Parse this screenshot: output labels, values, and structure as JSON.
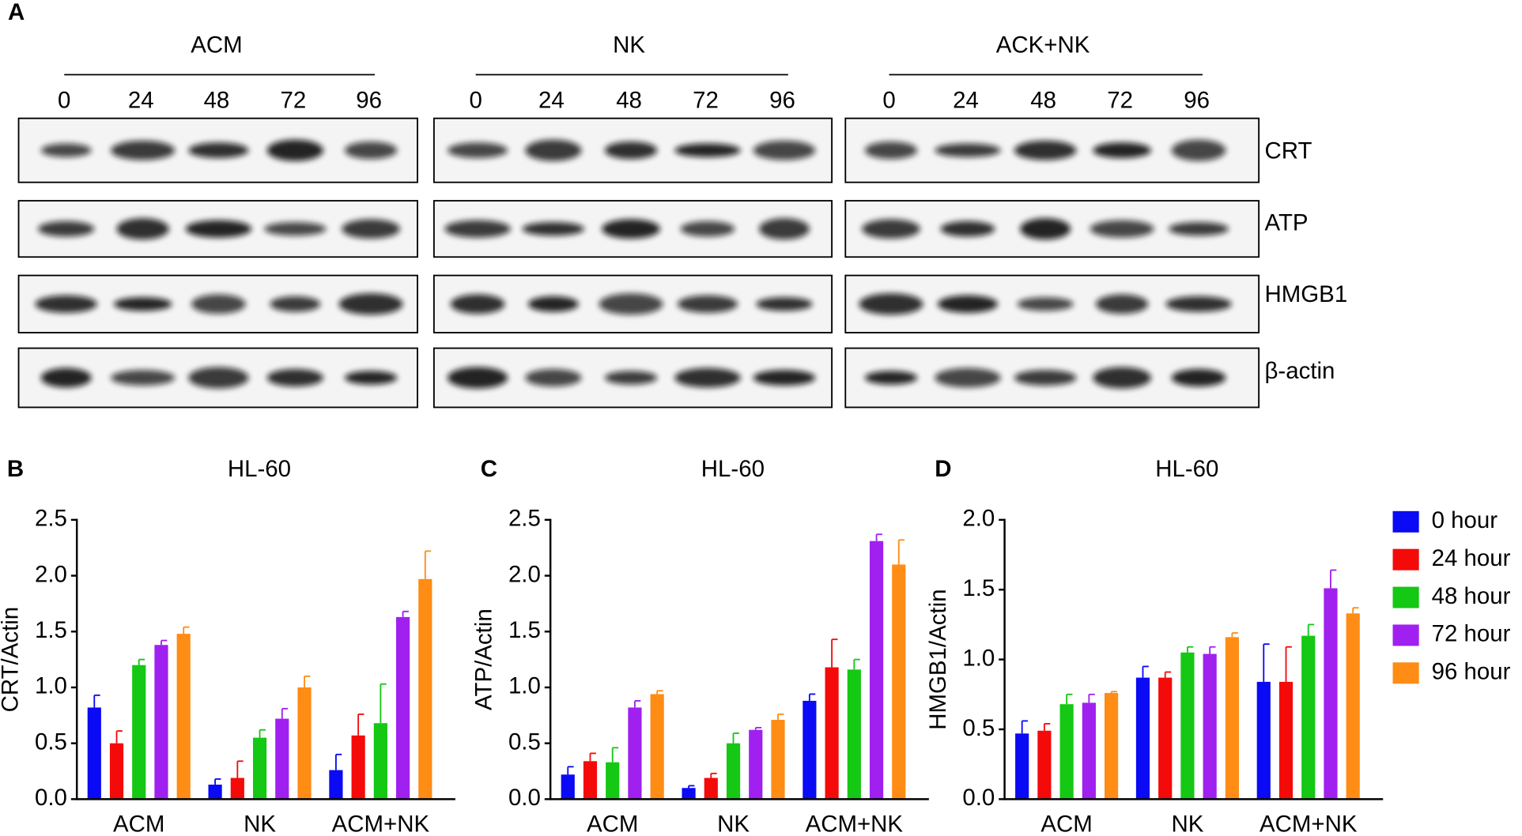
{
  "panel_a": {
    "label": "A",
    "groups": [
      {
        "name": "ACM",
        "times": [
          0,
          24,
          48,
          72,
          96
        ]
      },
      {
        "name": "NK",
        "times": [
          0,
          24,
          48,
          72,
          96
        ]
      },
      {
        "name": "ACK+NK",
        "times": [
          0,
          24,
          48,
          72,
          96
        ]
      }
    ],
    "rows": [
      "CRT",
      "ATP",
      "HMGB1",
      "β-actin"
    ]
  },
  "chart_data": [
    {
      "type": "bar",
      "label": "B",
      "title": "HL-60",
      "ylabel": "CRT/Actin",
      "categories": [
        "ACM",
        "NK",
        "ACM+NK"
      ],
      "ylim": [
        0,
        2.5
      ],
      "yticks": [
        {
          "value": 0,
          "label": "0.0"
        },
        0.5,
        {
          "value": 1,
          "label": "1.0"
        },
        1.5,
        {
          "value": 2,
          "label": "2.0"
        },
        2.5
      ],
      "series": [
        {
          "color": "#0a0af5",
          "values": [
            0.82,
            0.13,
            0.26
          ],
          "errors": [
            0.11,
            0.05,
            0.14
          ]
        },
        {
          "color": "#f50a0a",
          "values": [
            0.5,
            0.19,
            0.57
          ],
          "errors": [
            0.11,
            0.15,
            0.19
          ]
        },
        {
          "color": "#14c814",
          "values": [
            1.2,
            0.55,
            0.68
          ],
          "errors": [
            0.05,
            0.07,
            0.35
          ]
        },
        {
          "color": "#a020f0",
          "values": [
            1.38,
            0.72,
            1.63
          ],
          "errors": [
            0.04,
            0.09,
            0.05
          ]
        },
        {
          "color": "#ff8c14",
          "values": [
            1.48,
            1.0,
            1.97
          ],
          "errors": [
            0.06,
            0.1,
            0.25
          ]
        }
      ]
    },
    {
      "type": "bar",
      "label": "C",
      "title": "HL-60",
      "ylabel": "ATP/Actin",
      "categories": [
        "ACM",
        "NK",
        "ACM+NK"
      ],
      "ylim": [
        0,
        2.5
      ],
      "yticks": [
        {
          "value": 0,
          "label": "0.0"
        },
        0.5,
        {
          "value": 1,
          "label": "1.0"
        },
        1.5,
        {
          "value": 2,
          "label": "2.0"
        },
        2.5
      ],
      "series": [
        {
          "color": "#0a0af5",
          "values": [
            0.22,
            0.1,
            0.88
          ],
          "errors": [
            0.07,
            0.02,
            0.06
          ]
        },
        {
          "color": "#f50a0a",
          "values": [
            0.34,
            0.19,
            1.18
          ],
          "errors": [
            0.07,
            0.04,
            0.25
          ]
        },
        {
          "color": "#14c814",
          "values": [
            0.33,
            0.5,
            1.16
          ],
          "errors": [
            0.13,
            0.09,
            0.09
          ]
        },
        {
          "color": "#a020f0",
          "values": [
            0.82,
            0.62,
            2.31
          ],
          "errors": [
            0.06,
            0.02,
            0.06
          ]
        },
        {
          "color": "#ff8c14",
          "values": [
            0.94,
            0.71,
            2.1
          ],
          "errors": [
            0.03,
            0.05,
            0.22
          ]
        }
      ]
    },
    {
      "type": "bar",
      "label": "D",
      "title": "HL-60",
      "ylabel": "HMGB1/Actin",
      "categories": [
        "ACM",
        "NK",
        "ACM+NK"
      ],
      "legend": "right",
      "ylim": [
        0,
        2
      ],
      "yticks": [
        {
          "value": 0,
          "label": "0.0"
        },
        0.5,
        {
          "value": 1,
          "label": "1.0"
        },
        1.5,
        {
          "value": 2,
          "label": "2.0"
        }
      ],
      "series": [
        {
          "name": "0 hour",
          "color": "#0a0af5",
          "values": [
            0.47,
            0.87,
            0.84
          ],
          "errors": [
            0.09,
            0.08,
            0.27
          ]
        },
        {
          "name": "24 hour",
          "color": "#f50a0a",
          "values": [
            0.49,
            0.87,
            0.84
          ],
          "errors": [
            0.05,
            0.04,
            0.25
          ]
        },
        {
          "name": "48 hour",
          "color": "#14c814",
          "values": [
            0.68,
            1.05,
            1.17
          ],
          "errors": [
            0.07,
            0.04,
            0.08
          ]
        },
        {
          "name": "72 hour",
          "color": "#a020f0",
          "values": [
            0.69,
            1.04,
            1.51
          ],
          "errors": [
            0.06,
            0.05,
            0.13
          ]
        },
        {
          "name": "96 hour",
          "color": "#ff8c14",
          "values": [
            0.76,
            1.16,
            1.33
          ],
          "errors": [
            0.01,
            0.03,
            0.04
          ]
        }
      ]
    }
  ]
}
